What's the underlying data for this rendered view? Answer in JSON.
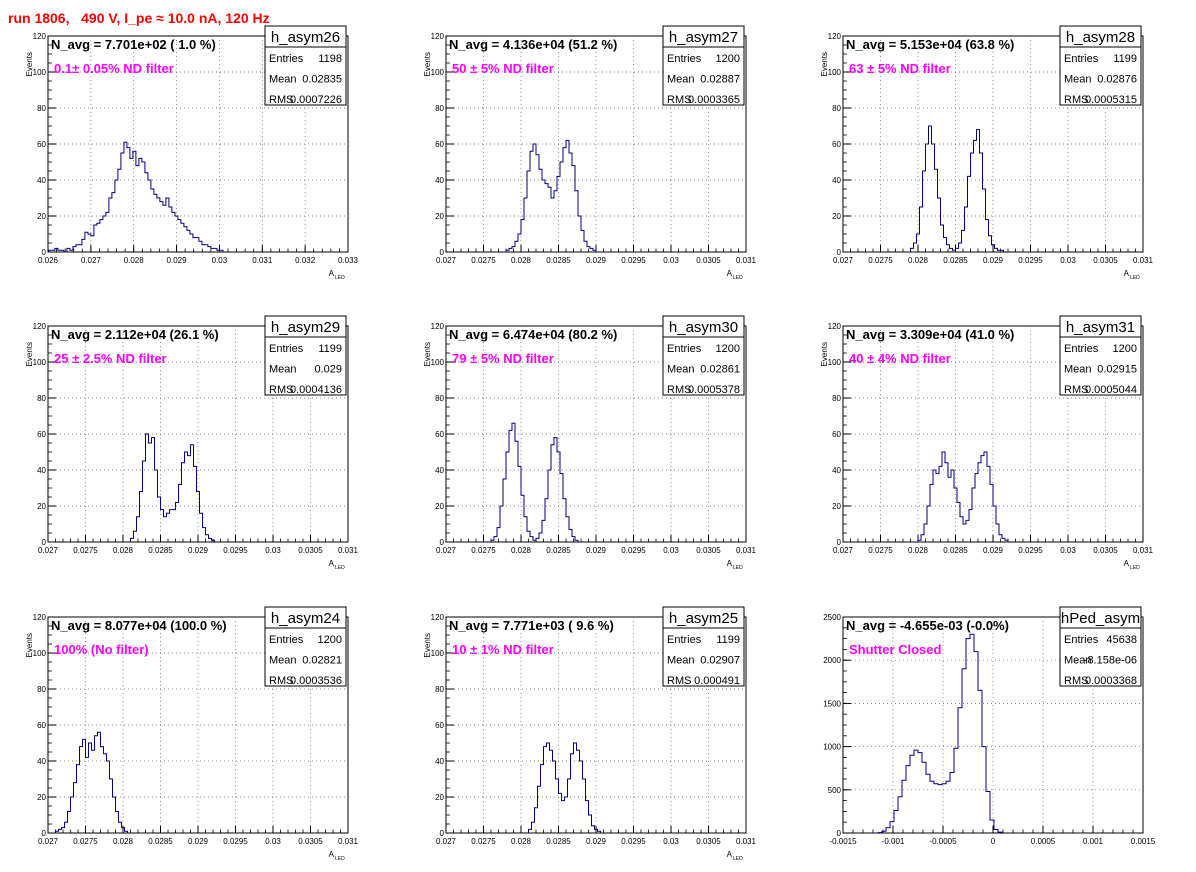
{
  "title": "run 1806,   490 V, I_pe ≈ 10.0 nA, 120 Hz",
  "colors": {
    "title": "#ff0000",
    "annotation": "#ff00ff",
    "histogram": "#000080"
  },
  "chart_data": [
    {
      "type": "histogram",
      "name": "h_asym26",
      "navg": "N_avg = 7.701e+02 ( 1.0 %)",
      "filter": "0.1± 0.05% ND filter",
      "stats": [
        [
          "Entries",
          "1198"
        ],
        [
          "Mean",
          "0.02835"
        ],
        [
          "RMS",
          "0.0007226"
        ]
      ],
      "ylabel": "Events",
      "xlabel": "A",
      "xlabel_sub": "LED",
      "xlim": [
        0.026,
        0.033
      ],
      "ylim": [
        0,
        120
      ],
      "xticks": [
        "0.026",
        "0.027",
        "0.028",
        "0.029",
        "0.03",
        "0.031",
        "0.032",
        "0.033"
      ],
      "yticks": [
        "0",
        "20",
        "40",
        "60",
        "80",
        "100",
        "120"
      ],
      "bins": {
        "start": 0.02602,
        "width": 7e-05,
        "counts": [
          1,
          1,
          2,
          1,
          1,
          0,
          2,
          1,
          3,
          4,
          4,
          7,
          11,
          10,
          9,
          15,
          16,
          18,
          20,
          22,
          30,
          33,
          40,
          46,
          55,
          61,
          58,
          52,
          56,
          48,
          52,
          50,
          44,
          40,
          35,
          32,
          30,
          28,
          26,
          30,
          25,
          22,
          20,
          18,
          16,
          14,
          12,
          10,
          8,
          8,
          6,
          4,
          4,
          3,
          2,
          2,
          1,
          1
        ]
      }
    },
    {
      "type": "histogram",
      "name": "h_asym27",
      "navg": "N_avg = 4.136e+04 (51.2 %)",
      "filter": "50 ± 5% ND filter",
      "stats": [
        [
          "Entries",
          "1200"
        ],
        [
          "Mean",
          "0.02887"
        ],
        [
          "RMS",
          "0.0003365"
        ]
      ],
      "ylabel": "Events",
      "xlabel": "A",
      "xlabel_sub": "LED",
      "xlim": [
        0.027,
        0.031
      ],
      "ylim": [
        0,
        120
      ],
      "xticks": [
        "0.027",
        "0.0275",
        "0.028",
        "0.0285",
        "0.029",
        "0.0295",
        "0.03",
        "0.0305",
        "0.031"
      ],
      "yticks": [
        "0",
        "20",
        "40",
        "60",
        "80",
        "100",
        "120"
      ],
      "bins": {
        "start": 0.0278,
        "width": 4e-05,
        "counts": [
          1,
          2,
          3,
          6,
          10,
          18,
          30,
          45,
          56,
          60,
          54,
          46,
          40,
          38,
          36,
          30,
          34,
          42,
          50,
          58,
          62,
          55,
          48,
          34,
          20,
          12,
          6,
          3,
          2,
          1
        ]
      }
    },
    {
      "type": "histogram",
      "name": "h_asym28",
      "navg": "N_avg = 5.153e+04 (63.8 %)",
      "filter": "63 ± 5% ND filter",
      "stats": [
        [
          "Entries",
          "1199"
        ],
        [
          "Mean",
          "0.02876"
        ],
        [
          "RMS",
          "0.0005315"
        ]
      ],
      "ylabel": "Events",
      "xlabel": "A",
      "xlabel_sub": "LED",
      "xlim": [
        0.027,
        0.031
      ],
      "ylim": [
        0,
        120
      ],
      "xticks": [
        "0.027",
        "0.0275",
        "0.028",
        "0.0285",
        "0.029",
        "0.0295",
        "0.03",
        "0.0305",
        "0.031"
      ],
      "yticks": [
        "0",
        "20",
        "40",
        "60",
        "80",
        "100",
        "120"
      ],
      "bins": {
        "start": 0.0279,
        "width": 4e-05,
        "counts": [
          2,
          5,
          10,
          25,
          45,
          60,
          70,
          60,
          46,
          30,
          15,
          8,
          4,
          2,
          1,
          2,
          5,
          12,
          25,
          42,
          55,
          62,
          68,
          55,
          35,
          18,
          9,
          4,
          2,
          1,
          1
        ]
      }
    },
    {
      "type": "histogram",
      "name": "h_asym29",
      "navg": "N_avg = 2.112e+04 (26.1 %)",
      "filter": "25 ± 2.5% ND filter",
      "stats": [
        [
          "Entries",
          "1199"
        ],
        [
          "Mean",
          "0.029"
        ],
        [
          "RMS",
          "0.0004136"
        ]
      ],
      "ylabel": "Events",
      "xlabel": "A",
      "xlabel_sub": "LED",
      "xlim": [
        0.027,
        0.031
      ],
      "ylim": [
        0,
        120
      ],
      "xticks": [
        "0.027",
        "0.0275",
        "0.028",
        "0.0285",
        "0.029",
        "0.0295",
        "0.03",
        "0.0305",
        "0.031"
      ],
      "yticks": [
        "0",
        "20",
        "40",
        "60",
        "80",
        "100",
        "120"
      ],
      "bins": {
        "start": 0.0281,
        "width": 4e-05,
        "counts": [
          2,
          6,
          14,
          28,
          45,
          60,
          55,
          58,
          40,
          25,
          18,
          14,
          16,
          18,
          18,
          22,
          32,
          44,
          50,
          48,
          54,
          42,
          28,
          16,
          8,
          4,
          2,
          1
        ]
      }
    },
    {
      "type": "histogram",
      "name": "h_asym30",
      "navg": "N_avg = 6.474e+04 (80.2 %)",
      "filter": "79 ± 5% ND filter",
      "stats": [
        [
          "Entries",
          "1200"
        ],
        [
          "Mean",
          "0.02861"
        ],
        [
          "RMS",
          "0.0005378"
        ]
      ],
      "ylabel": "Events",
      "xlabel": "A",
      "xlabel_sub": "LED",
      "xlim": [
        0.027,
        0.031
      ],
      "ylim": [
        0,
        120
      ],
      "xticks": [
        "0.027",
        "0.0275",
        "0.028",
        "0.0285",
        "0.029",
        "0.0295",
        "0.03",
        "0.0305",
        "0.031"
      ],
      "yticks": [
        "0",
        "20",
        "40",
        "60",
        "80",
        "100",
        "120"
      ],
      "bins": {
        "start": 0.0276,
        "width": 4e-05,
        "counts": [
          1,
          3,
          8,
          20,
          35,
          50,
          62,
          66,
          56,
          42,
          26,
          14,
          6,
          3,
          1,
          2,
          5,
          12,
          24,
          40,
          54,
          58,
          50,
          38,
          24,
          14,
          7,
          3,
          1
        ]
      }
    },
    {
      "type": "histogram",
      "name": "h_asym31",
      "navg": "N_avg = 3.309e+04 (41.0 %)",
      "filter": "40 ± 4% ND filter",
      "stats": [
        [
          "Entries",
          "1200"
        ],
        [
          "Mean",
          "0.02915"
        ],
        [
          "RMS",
          "0.0005044"
        ]
      ],
      "ylabel": "Events",
      "xlabel": "A",
      "xlabel_sub": "LED",
      "xlim": [
        0.027,
        0.031
      ],
      "ylim": [
        0,
        120
      ],
      "xticks": [
        "0.027",
        "0.0275",
        "0.028",
        "0.0285",
        "0.029",
        "0.0295",
        "0.03",
        "0.0305",
        "0.031"
      ],
      "yticks": [
        "0",
        "20",
        "40",
        "60",
        "80",
        "100",
        "120"
      ],
      "bins": {
        "start": 0.028,
        "width": 4e-05,
        "counts": [
          1,
          4,
          10,
          20,
          32,
          40,
          38,
          42,
          50,
          44,
          36,
          40,
          30,
          22,
          14,
          10,
          12,
          18,
          30,
          38,
          44,
          48,
          50,
          42,
          32,
          20,
          10,
          4,
          2,
          1
        ]
      }
    },
    {
      "type": "histogram",
      "name": "h_asym24",
      "navg": "N_avg = 8.077e+04 (100.0 %)",
      "filter": "100% (No filter)",
      "stats": [
        [
          "Entries",
          "1200"
        ],
        [
          "Mean",
          "0.02821"
        ],
        [
          "RMS",
          "0.0003536"
        ]
      ],
      "ylabel": "Events",
      "xlabel": "A",
      "xlabel_sub": "LED",
      "xlim": [
        0.027,
        0.031
      ],
      "ylim": [
        0,
        120
      ],
      "xticks": [
        "0.027",
        "0.0275",
        "0.028",
        "0.0285",
        "0.029",
        "0.0295",
        "0.03",
        "0.0305",
        "0.031"
      ],
      "yticks": [
        "0",
        "20",
        "40",
        "60",
        "80",
        "100",
        "120"
      ],
      "bins": {
        "start": 0.0271,
        "width": 4e-05,
        "counts": [
          1,
          2,
          3,
          6,
          12,
          20,
          28,
          38,
          48,
          52,
          42,
          50,
          46,
          54,
          56,
          48,
          44,
          40,
          30,
          20,
          12,
          6,
          3,
          1
        ]
      }
    },
    {
      "type": "histogram",
      "name": "h_asym25",
      "navg": "N_avg = 7.771e+03 ( 9.6 %)",
      "filter": "10 ± 1% ND filter",
      "stats": [
        [
          "Entries",
          "1199"
        ],
        [
          "Mean",
          "0.02907"
        ],
        [
          "RMS",
          "0.000491"
        ]
      ],
      "ylabel": "Events",
      "xlabel": "A",
      "xlabel_sub": "LED",
      "xlim": [
        0.027,
        0.031
      ],
      "ylim": [
        0,
        120
      ],
      "xticks": [
        "0.027",
        "0.0275",
        "0.028",
        "0.0285",
        "0.029",
        "0.0295",
        "0.03",
        "0.0305",
        "0.031"
      ],
      "yticks": [
        "0",
        "20",
        "40",
        "60",
        "80",
        "100",
        "120"
      ],
      "bins": {
        "start": 0.0281,
        "width": 4e-05,
        "counts": [
          2,
          6,
          14,
          26,
          38,
          48,
          50,
          46,
          40,
          30,
          22,
          18,
          20,
          30,
          44,
          50,
          46,
          40,
          30,
          18,
          10,
          4,
          2,
          1
        ]
      }
    },
    {
      "type": "histogram",
      "name": "hPed_asym",
      "navg": "N_avg = -4.655e-03 (-0.0%)",
      "filter": "Shutter Closed",
      "stats": [
        [
          "Entries",
          "45638"
        ],
        [
          "Mean",
          "-8.158e-06"
        ],
        [
          "RMS",
          "0.0003368"
        ]
      ],
      "ylabel": "",
      "xlabel": "",
      "xlabel_sub": "",
      "xlim": [
        -0.0015,
        0.0015
      ],
      "ylim": [
        0,
        2500
      ],
      "xticks": [
        "-0.0015",
        "-0.001",
        "-0.0005",
        "0",
        "0.0005",
        "0.001",
        "0.0015"
      ],
      "yticks": [
        "0",
        "500",
        "1000",
        "1500",
        "2000",
        "2500"
      ],
      "bins": {
        "start": -0.00115,
        "width": 4e-05,
        "counts": [
          5,
          20,
          60,
          130,
          260,
          420,
          610,
          780,
          900,
          960,
          930,
          820,
          680,
          600,
          570,
          560,
          570,
          600,
          700,
          980,
          1450,
          1900,
          2250,
          2300,
          2100,
          1650,
          1000,
          480,
          150,
          40,
          10
        ]
      }
    }
  ]
}
